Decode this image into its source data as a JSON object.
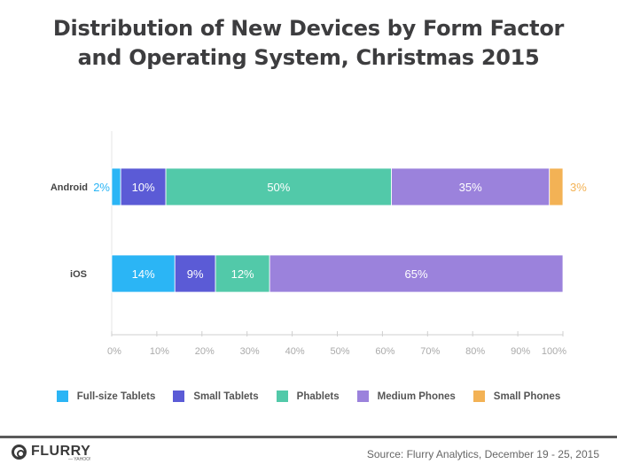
{
  "chart_data": {
    "type": "bar",
    "orientation": "horizontal",
    "stacked": true,
    "title": "Distribution of New Devices by Form Factor and Operating System, Christmas 2015",
    "title_lines": [
      "Distribution of New Devices by Form Factor",
      "and Operating System, Christmas 2015"
    ],
    "categories": [
      "Android",
      "iOS"
    ],
    "series": [
      {
        "name": "Full-size Tablets",
        "color": "#2bb5f5",
        "values": [
          2,
          14
        ],
        "labels": [
          "2%",
          "14%"
        ]
      },
      {
        "name": "Small Tablets",
        "color": "#5b5bd6",
        "values": [
          10,
          9
        ],
        "labels": [
          "10%",
          "9%"
        ]
      },
      {
        "name": "Phablets",
        "color": "#52c9a9",
        "values": [
          50,
          12
        ],
        "labels": [
          "50%",
          "12%"
        ]
      },
      {
        "name": "Medium Phones",
        "color": "#9b82dc",
        "values": [
          35,
          65
        ],
        "labels": [
          "35%",
          "65%"
        ]
      },
      {
        "name": "Small Phones",
        "color": "#f3b255",
        "values": [
          3,
          0
        ],
        "labels": [
          "3%",
          ""
        ]
      }
    ],
    "xlabel": "",
    "ylabel": "",
    "xlim": [
      0,
      100
    ],
    "xticks": [
      "0%",
      "10%",
      "20%",
      "30%",
      "40%",
      "50%",
      "60%",
      "70%",
      "80%",
      "90%",
      "100%"
    ],
    "grid": false,
    "legend_position": "bottom"
  },
  "footer": {
    "logo_text": "FLURRY",
    "logo_sub": "— YAHOO!",
    "source": "Source: Flurry Analytics, December 19 - 25, 2015"
  }
}
